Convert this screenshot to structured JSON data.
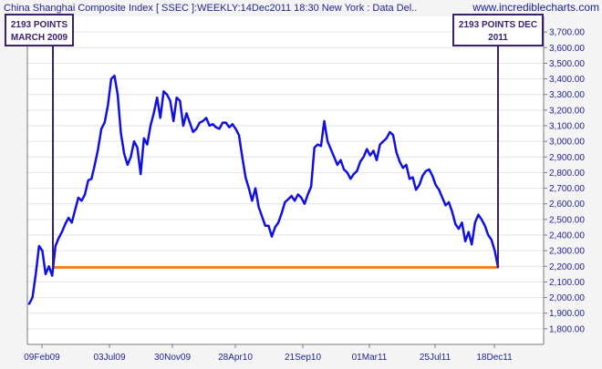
{
  "header": {
    "title": "China Shanghai Composite Index [ SSEC ]:WEEKLY:14Dec2011 18:30 New York : Data Del..",
    "brand": "www.incrediblecharts.com"
  },
  "colors": {
    "price_line": "#1010e0",
    "support_line": "#ff7f1a",
    "callout": "#3a1f6e",
    "axis_text": "#1f1f8a"
  },
  "chart_data": {
    "type": "line",
    "xlabel": "",
    "ylabel": "",
    "ylim": [
      1700,
      3800
    ],
    "x_ticks": [
      "09Feb09",
      "03Jul09",
      "30Nov09",
      "28Apr10",
      "21Sep10",
      "01Mar11",
      "25Jul11",
      "18Dec11"
    ],
    "y_ticks": [
      "1,800.00",
      "1,900.00",
      "2,000.00",
      "2,100.00",
      "2,200.00",
      "2,300.00",
      "2,400.00",
      "2,500.00",
      "2,600.00",
      "2,700.00",
      "2,800.00",
      "2,900.00",
      "3,000.00",
      "3,100.00",
      "3,200.00",
      "3,300.00",
      "3,400.00",
      "3,500.00",
      "3,600.00",
      "3,700.00"
    ],
    "series": [
      {
        "values": [
          1960,
          2000,
          2150,
          2330,
          2300,
          2150,
          2200,
          2140,
          2330,
          2380,
          2420,
          2470,
          2510,
          2480,
          2560,
          2640,
          2620,
          2660,
          2750,
          2760,
          2850,
          2950,
          3080,
          3120,
          3230,
          3400,
          3420,
          3300,
          3050,
          2920,
          2850,
          2900,
          3000,
          2960,
          2790,
          3020,
          2980,
          3100,
          3180,
          3280,
          3150,
          3320,
          3300,
          3260,
          3130,
          3280,
          3260,
          3100,
          3180,
          3120,
          3060,
          3080,
          3120,
          3130,
          3150,
          3100,
          3110,
          3090,
          3080,
          3120,
          3120,
          3090,
          3110,
          3080,
          3040,
          2900,
          2770,
          2700,
          2620,
          2700,
          2580,
          2520,
          2460,
          2460,
          2390,
          2450,
          2480,
          2540,
          2610,
          2630,
          2650,
          2620,
          2660,
          2640,
          2600,
          2660,
          2710,
          2960,
          2980,
          2970,
          3130,
          3000,
          2950,
          2900,
          2850,
          2880,
          2820,
          2800,
          2760,
          2790,
          2810,
          2870,
          2900,
          2950,
          2910,
          2940,
          2880,
          2980,
          3000,
          3020,
          3060,
          3040,
          2930,
          2870,
          2830,
          2850,
          2760,
          2770,
          2690,
          2720,
          2780,
          2810,
          2820,
          2780,
          2720,
          2690,
          2640,
          2590,
          2610,
          2550,
          2470,
          2440,
          2480,
          2360,
          2420,
          2340,
          2480,
          2530,
          2500,
          2460,
          2400,
          2370,
          2300,
          2195
        ],
        "annotations": [
          {
            "label_line1": "2193 POINTS",
            "label_line2": "MARCH 2009",
            "index": 7
          },
          {
            "label_line1": "2193 POINTS DEC",
            "label_line2": "2011",
            "index": 143
          }
        ]
      }
    ],
    "support_level": 2193
  }
}
